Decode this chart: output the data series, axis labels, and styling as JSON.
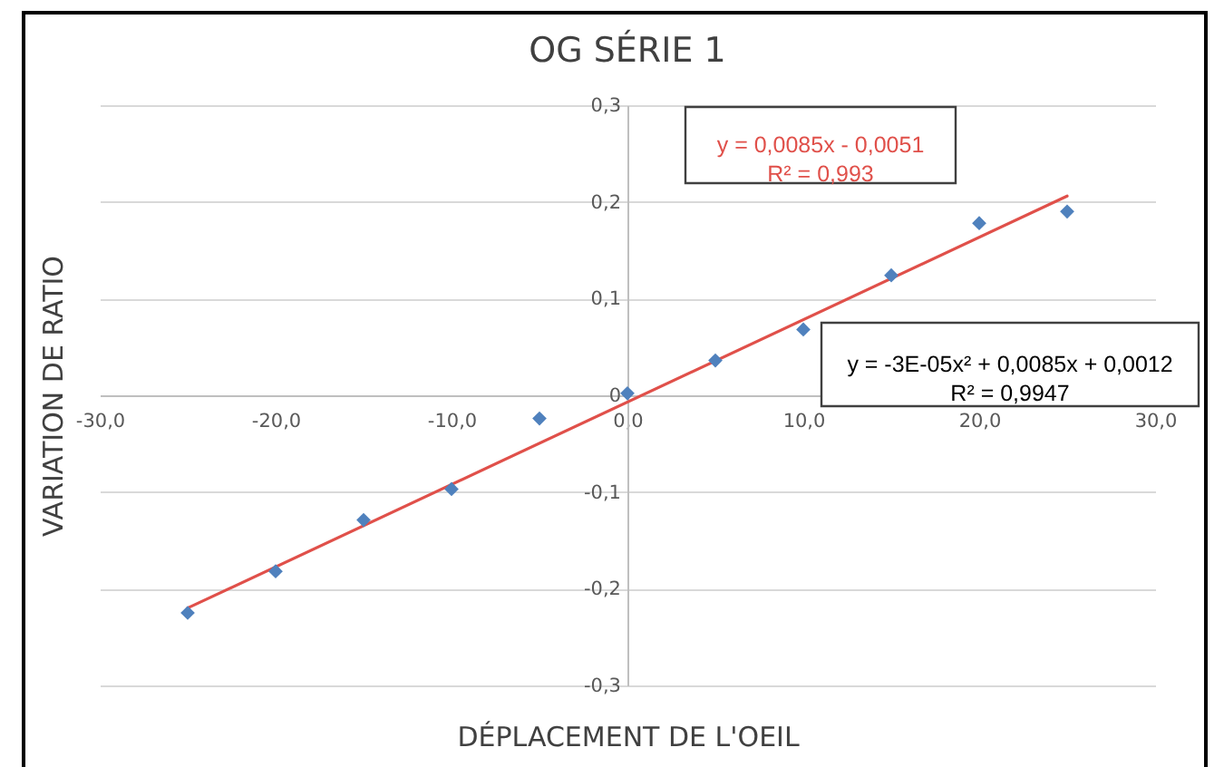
{
  "chart_data": {
    "type": "scatter",
    "title": "OG SÉRIE 1",
    "xlabel": "DÉPLACEMENT DE L'OEIL",
    "ylabel": "VARIATION DE RATIO",
    "x": [
      -25,
      -20,
      -15,
      -10,
      -5,
      0,
      5,
      10,
      15,
      20,
      25
    ],
    "series": [
      {
        "color": "#4f81bd",
        "values": [
          -0.225,
          -0.182,
          -0.129,
          -0.097,
          -0.024,
          0.002,
          0.036,
          0.068,
          0.124,
          0.178,
          0.19
        ]
      },
      {
        "type": "line",
        "color": "#e0504a",
        "marker": "none",
        "line_style": "solid",
        "x": [
          -25,
          25
        ],
        "values": [
          -0.22,
          0.206
        ]
      }
    ],
    "xlim": [
      -30,
      30
    ],
    "xticks": [
      {
        "value": -30,
        "label": "-30,0"
      },
      {
        "value": -20,
        "label": "-20,0"
      },
      {
        "value": -10,
        "label": "-10,0"
      },
      {
        "value": 0,
        "label": "0,0"
      },
      {
        "value": 10,
        "label": "10,0"
      },
      {
        "value": 20,
        "label": "20,0"
      },
      {
        "value": 30,
        "label": "30,0"
      }
    ],
    "ylim": [
      -0.3,
      0.3
    ],
    "yticks": [
      {
        "value": -0.3,
        "label": "-0,3"
      },
      {
        "value": -0.2,
        "label": "-0,2"
      },
      {
        "value": -0.1,
        "label": "-0,1"
      },
      {
        "value": 0,
        "label": "0"
      },
      {
        "value": 0.1,
        "label": "0,1"
      },
      {
        "value": 0.2,
        "label": "0,2"
      },
      {
        "value": 0.3,
        "label": "0,3"
      }
    ],
    "grid": "y",
    "marker": "diamond",
    "annotations": [
      "y = 0,0085x - 0,0051\nR² = 0,993",
      "y = -3E-05x² + 0,0085x + 0,0012\nR² = 0,9947"
    ]
  }
}
